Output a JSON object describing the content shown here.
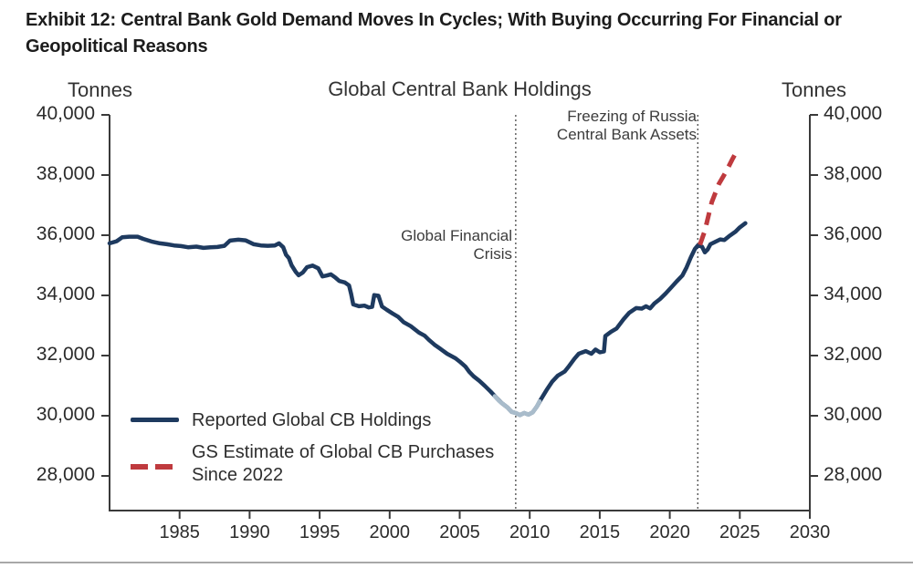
{
  "exhibit_title": "Exhibit 12: Central Bank Gold Demand Moves In Cycles; With Buying Occurring For Financial or Geopolitical Reasons",
  "chart": {
    "title": "Global Central Bank Holdings",
    "left_unit": "Tonnes",
    "right_unit": "Tonnes",
    "annotations": {
      "gfc_line1": "Global Financial",
      "gfc_line2": "Crisis",
      "russia_line1": "Freezing of Russia",
      "russia_line2": "Central Bank Assets"
    },
    "legend": {
      "item1": "Reported Global CB Holdings",
      "item2_line1": "GS Estimate of Global CB Purchases",
      "item2_line2": "Since 2022"
    }
  },
  "colors": {
    "navy": "#1e3a5f",
    "trough_highlight": "#a9bccb",
    "gs_red": "#bf3a3e",
    "axis": "#3a3a3a",
    "vline": "#555555"
  },
  "chart_data": {
    "type": "line",
    "title": "Global Central Bank Holdings",
    "ylabel": "Tonnes",
    "xlim": [
      1980,
      2030
    ],
    "ylim": [
      28000,
      40000
    ],
    "grid": false,
    "legend_position": "lower-left",
    "y_ticks": [
      40000,
      38000,
      36000,
      34000,
      32000,
      30000,
      28000
    ],
    "y_tick_labels": [
      "40,000",
      "38,000",
      "36,000",
      "34,000",
      "32,000",
      "30,000",
      "28,000"
    ],
    "x_ticks": [
      1985,
      1990,
      1995,
      2000,
      2005,
      2010,
      2015,
      2020,
      2025,
      2030
    ],
    "x_tick_labels": [
      "1985",
      "1990",
      "1995",
      "2000",
      "2005",
      "2010",
      "2015",
      "2020",
      "2025",
      "2030"
    ],
    "vlines": [
      {
        "x": 2009,
        "label": "Global Financial Crisis"
      },
      {
        "x": 2022,
        "label": "Freezing of Russia Central Bank Assets"
      }
    ],
    "series": [
      {
        "name": "Reported Global CB Holdings",
        "color": "#1e3a5f",
        "width": 4.5,
        "points": [
          [
            1980.0,
            35730
          ],
          [
            1980.5,
            35800
          ],
          [
            1980.9,
            35930
          ],
          [
            1981.4,
            35950
          ],
          [
            1982.0,
            35950
          ],
          [
            1982.4,
            35880
          ],
          [
            1983.0,
            35790
          ],
          [
            1983.6,
            35730
          ],
          [
            1984.1,
            35700
          ],
          [
            1984.6,
            35660
          ],
          [
            1985.1,
            35640
          ],
          [
            1985.6,
            35600
          ],
          [
            1986.2,
            35620
          ],
          [
            1986.7,
            35580
          ],
          [
            1987.2,
            35600
          ],
          [
            1987.7,
            35610
          ],
          [
            1988.2,
            35650
          ],
          [
            1988.6,
            35820
          ],
          [
            1989.2,
            35850
          ],
          [
            1989.7,
            35830
          ],
          [
            1990.3,
            35700
          ],
          [
            1990.8,
            35660
          ],
          [
            1991.3,
            35650
          ],
          [
            1991.8,
            35660
          ],
          [
            1992.1,
            35730
          ],
          [
            1992.4,
            35600
          ],
          [
            1992.6,
            35350
          ],
          [
            1992.8,
            35240
          ],
          [
            1993.0,
            35000
          ],
          [
            1993.3,
            34780
          ],
          [
            1993.5,
            34670
          ],
          [
            1993.8,
            34760
          ],
          [
            1994.1,
            34940
          ],
          [
            1994.5,
            34990
          ],
          [
            1994.9,
            34900
          ],
          [
            1995.2,
            34630
          ],
          [
            1995.5,
            34660
          ],
          [
            1995.8,
            34700
          ],
          [
            1996.1,
            34600
          ],
          [
            1996.4,
            34480
          ],
          [
            1996.8,
            34430
          ],
          [
            1997.1,
            34330
          ],
          [
            1997.25,
            34050
          ],
          [
            1997.4,
            33700
          ],
          [
            1997.8,
            33640
          ],
          [
            1998.2,
            33660
          ],
          [
            1998.5,
            33600
          ],
          [
            1998.75,
            33620
          ],
          [
            1998.9,
            34010
          ],
          [
            1999.2,
            33990
          ],
          [
            1999.45,
            33630
          ],
          [
            1999.8,
            33520
          ],
          [
            2000.2,
            33400
          ],
          [
            2000.6,
            33290
          ],
          [
            2001.0,
            33110
          ],
          [
            2001.5,
            32980
          ],
          [
            2002.1,
            32760
          ],
          [
            2002.5,
            32660
          ],
          [
            2002.8,
            32520
          ],
          [
            2003.2,
            32360
          ],
          [
            2003.6,
            32230
          ],
          [
            2004.1,
            32060
          ],
          [
            2004.7,
            31910
          ],
          [
            2005.0,
            31800
          ],
          [
            2005.4,
            31640
          ],
          [
            2005.7,
            31450
          ],
          [
            2006.0,
            31310
          ],
          [
            2006.4,
            31160
          ],
          [
            2006.8,
            30990
          ],
          [
            2007.2,
            30810
          ],
          [
            2007.6,
            30610
          ],
          [
            2008.0,
            30420
          ],
          [
            2008.4,
            30280
          ],
          [
            2008.7,
            30130
          ],
          [
            2009.0,
            30090
          ],
          [
            2009.3,
            30020
          ],
          [
            2009.6,
            30090
          ],
          [
            2009.9,
            30040
          ],
          [
            2010.2,
            30110
          ],
          [
            2010.5,
            30300
          ],
          [
            2010.8,
            30550
          ],
          [
            2011.2,
            30850
          ],
          [
            2011.6,
            31130
          ],
          [
            2012.0,
            31330
          ],
          [
            2012.5,
            31470
          ],
          [
            2012.8,
            31650
          ],
          [
            2013.2,
            31900
          ],
          [
            2013.5,
            32060
          ],
          [
            2014.0,
            32150
          ],
          [
            2014.4,
            32060
          ],
          [
            2014.7,
            32200
          ],
          [
            2015.0,
            32110
          ],
          [
            2015.3,
            32140
          ],
          [
            2015.4,
            32650
          ],
          [
            2015.8,
            32790
          ],
          [
            2016.2,
            32900
          ],
          [
            2016.7,
            33210
          ],
          [
            2017.1,
            33420
          ],
          [
            2017.6,
            33580
          ],
          [
            2018.0,
            33560
          ],
          [
            2018.3,
            33640
          ],
          [
            2018.6,
            33570
          ],
          [
            2018.9,
            33730
          ],
          [
            2019.3,
            33880
          ],
          [
            2019.7,
            34060
          ],
          [
            2020.1,
            34260
          ],
          [
            2020.5,
            34470
          ],
          [
            2020.9,
            34660
          ],
          [
            2021.2,
            34930
          ],
          [
            2021.5,
            35260
          ],
          [
            2021.8,
            35550
          ],
          [
            2022.0,
            35660
          ],
          [
            2022.3,
            35620
          ],
          [
            2022.5,
            35430
          ],
          [
            2022.7,
            35520
          ],
          [
            2022.9,
            35700
          ],
          [
            2023.2,
            35770
          ],
          [
            2023.6,
            35860
          ],
          [
            2023.9,
            35840
          ],
          [
            2024.3,
            35990
          ],
          [
            2024.7,
            36120
          ],
          [
            2025.0,
            36260
          ],
          [
            2025.4,
            36400
          ]
        ]
      },
      {
        "name": "GFC trough highlighted segment",
        "color": "#a9bccb",
        "width": 4.6,
        "points": [
          [
            2007.5,
            30650
          ],
          [
            2007.8,
            30500
          ],
          [
            2008.0,
            30420
          ],
          [
            2008.4,
            30280
          ],
          [
            2008.7,
            30130
          ],
          [
            2009.0,
            30090
          ],
          [
            2009.3,
            30020
          ],
          [
            2009.6,
            30090
          ],
          [
            2009.9,
            30040
          ],
          [
            2010.2,
            30110
          ],
          [
            2010.5,
            30300
          ],
          [
            2010.7,
            30480
          ]
        ]
      },
      {
        "name": "GS Estimate of Global CB Purchases Since 2022",
        "color": "#bf3a3e",
        "width": 5,
        "dash": "14 9",
        "points": [
          [
            2022.15,
            35680
          ],
          [
            2022.5,
            36150
          ],
          [
            2023.0,
            37100
          ],
          [
            2023.5,
            37700
          ],
          [
            2024.0,
            38100
          ],
          [
            2024.5,
            38550
          ],
          [
            2024.9,
            38900
          ]
        ]
      }
    ]
  }
}
